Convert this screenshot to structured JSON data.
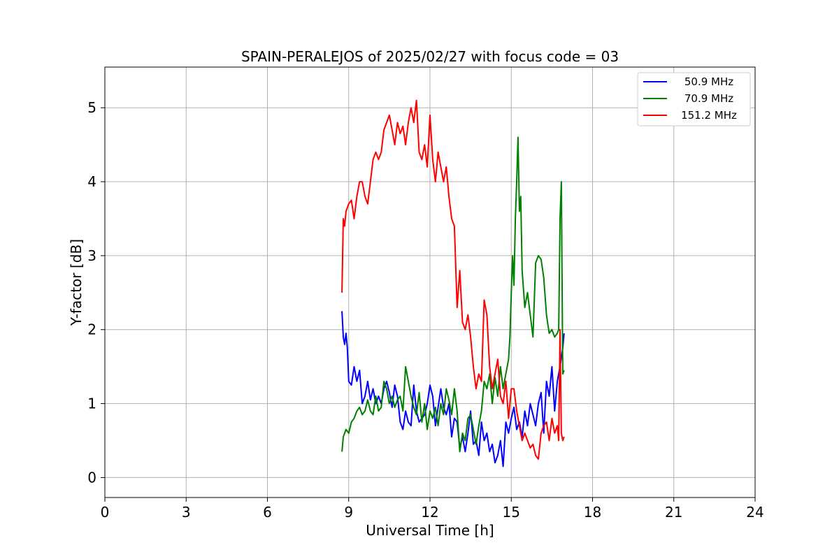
{
  "chart_data": {
    "type": "line",
    "title": "SPAIN-PERALEJOS of 2025/02/27 with focus code = 03",
    "xlabel": "Universal Time [h]",
    "ylabel": "Y-factor [dB]",
    "xlim": [
      0,
      24
    ],
    "ylim": [
      -0.27,
      5.55
    ],
    "xticks": [
      0,
      3,
      6,
      9,
      12,
      15,
      18,
      21,
      24
    ],
    "yticks": [
      0,
      1,
      2,
      3,
      4,
      5
    ],
    "grid": true,
    "legend_position": "top-right",
    "series": [
      {
        "name": "50.9 MHz",
        "color": "#0000ff",
        "x": [
          8.75,
          8.8,
          8.85,
          8.9,
          8.95,
          9.0,
          9.1,
          9.2,
          9.3,
          9.4,
          9.5,
          9.6,
          9.7,
          9.8,
          9.9,
          10.0,
          10.1,
          10.2,
          10.3,
          10.4,
          10.5,
          10.6,
          10.7,
          10.8,
          10.9,
          11.0,
          11.1,
          11.2,
          11.3,
          11.4,
          11.5,
          11.6,
          11.7,
          11.8,
          11.9,
          12.0,
          12.1,
          12.2,
          12.3,
          12.4,
          12.5,
          12.6,
          12.7,
          12.8,
          12.9,
          13.0,
          13.1,
          13.2,
          13.3,
          13.4,
          13.5,
          13.6,
          13.7,
          13.8,
          13.9,
          14.0,
          14.1,
          14.2,
          14.3,
          14.4,
          14.5,
          14.6,
          14.7,
          14.8,
          14.9,
          15.0,
          15.1,
          15.2,
          15.3,
          15.4,
          15.5,
          15.6,
          15.7,
          15.8,
          15.9,
          16.0,
          16.1,
          16.2,
          16.3,
          16.4,
          16.5,
          16.6,
          16.7,
          16.8,
          16.9,
          16.95
        ],
        "values": [
          2.25,
          1.9,
          1.8,
          1.95,
          1.75,
          1.3,
          1.25,
          1.5,
          1.3,
          1.45,
          1.0,
          1.1,
          1.3,
          1.05,
          1.2,
          1.0,
          1.1,
          1.0,
          1.2,
          1.3,
          1.15,
          0.95,
          1.25,
          1.1,
          0.75,
          0.65,
          0.9,
          0.75,
          0.7,
          1.25,
          0.9,
          0.75,
          0.8,
          0.85,
          1.0,
          1.25,
          1.1,
          0.7,
          0.95,
          1.2,
          0.95,
          0.85,
          1.0,
          0.55,
          0.8,
          0.75,
          0.4,
          0.55,
          0.35,
          0.6,
          0.9,
          0.45,
          0.5,
          0.3,
          0.75,
          0.5,
          0.6,
          0.35,
          0.45,
          0.2,
          0.3,
          0.5,
          0.15,
          0.75,
          0.6,
          0.8,
          0.95,
          0.65,
          0.75,
          0.55,
          0.9,
          0.7,
          1.0,
          0.85,
          0.7,
          1.0,
          1.15,
          0.6,
          1.3,
          1.1,
          1.5,
          0.9,
          1.3,
          1.5,
          1.75,
          1.95
        ]
      },
      {
        "name": "70.9 MHz",
        "color": "#008000",
        "x": [
          8.75,
          8.8,
          8.9,
          9.0,
          9.1,
          9.2,
          9.3,
          9.4,
          9.5,
          9.6,
          9.7,
          9.8,
          9.9,
          10.0,
          10.1,
          10.2,
          10.3,
          10.4,
          10.5,
          10.6,
          10.7,
          10.8,
          10.9,
          11.0,
          11.1,
          11.2,
          11.3,
          11.4,
          11.5,
          11.6,
          11.7,
          11.8,
          11.9,
          12.0,
          12.1,
          12.2,
          12.3,
          12.4,
          12.5,
          12.6,
          12.7,
          12.8,
          12.9,
          13.0,
          13.1,
          13.2,
          13.3,
          13.4,
          13.5,
          13.6,
          13.7,
          13.8,
          13.9,
          14.0,
          14.1,
          14.2,
          14.3,
          14.4,
          14.5,
          14.6,
          14.7,
          14.8,
          14.9,
          14.95,
          15.0,
          15.05,
          15.1,
          15.15,
          15.2,
          15.25,
          15.3,
          15.35,
          15.4,
          15.5,
          15.6,
          15.7,
          15.8,
          15.9,
          16.0,
          16.1,
          16.2,
          16.3,
          16.4,
          16.5,
          16.6,
          16.7,
          16.75,
          16.8,
          16.85,
          16.9,
          16.95
        ],
        "values": [
          0.35,
          0.55,
          0.65,
          0.6,
          0.75,
          0.8,
          0.9,
          0.95,
          0.85,
          0.9,
          1.05,
          0.9,
          0.85,
          1.1,
          0.9,
          0.95,
          1.3,
          1.2,
          1.0,
          1.1,
          0.95,
          1.05,
          1.1,
          0.9,
          1.5,
          1.3,
          1.1,
          0.95,
          0.85,
          1.15,
          0.75,
          1.0,
          0.65,
          0.9,
          0.8,
          0.95,
          0.7,
          1.0,
          0.85,
          1.2,
          1.05,
          0.85,
          1.2,
          0.9,
          0.35,
          0.6,
          0.5,
          0.8,
          0.85,
          0.65,
          0.45,
          0.7,
          0.9,
          1.3,
          1.2,
          1.4,
          1.0,
          1.35,
          1.1,
          1.5,
          1.2,
          1.4,
          1.6,
          1.9,
          2.5,
          3.0,
          2.6,
          3.5,
          4.0,
          4.6,
          3.6,
          3.8,
          2.8,
          2.3,
          2.5,
          2.2,
          1.9,
          2.9,
          3.0,
          2.95,
          2.7,
          2.2,
          1.95,
          2.0,
          1.9,
          1.95,
          2.0,
          3.5,
          4.0,
          1.4,
          1.45
        ]
      },
      {
        "name": "151.2 MHz",
        "color": "#ff0000",
        "x": [
          8.75,
          8.8,
          8.85,
          8.9,
          9.0,
          9.1,
          9.2,
          9.3,
          9.4,
          9.5,
          9.6,
          9.7,
          9.8,
          9.9,
          10.0,
          10.1,
          10.2,
          10.3,
          10.4,
          10.5,
          10.6,
          10.7,
          10.8,
          10.9,
          11.0,
          11.1,
          11.2,
          11.3,
          11.4,
          11.5,
          11.6,
          11.7,
          11.8,
          11.9,
          12.0,
          12.1,
          12.2,
          12.3,
          12.4,
          12.5,
          12.6,
          12.7,
          12.8,
          12.9,
          13.0,
          13.1,
          13.2,
          13.3,
          13.4,
          13.5,
          13.6,
          13.7,
          13.8,
          13.9,
          14.0,
          14.1,
          14.2,
          14.3,
          14.4,
          14.5,
          14.6,
          14.7,
          14.8,
          14.9,
          15.0,
          15.1,
          15.2,
          15.3,
          15.4,
          15.5,
          15.6,
          15.7,
          15.8,
          15.9,
          16.0,
          16.1,
          16.2,
          16.3,
          16.4,
          16.5,
          16.6,
          16.7,
          16.75,
          16.8,
          16.85,
          16.9,
          16.95
        ],
        "values": [
          2.5,
          3.5,
          3.4,
          3.6,
          3.7,
          3.75,
          3.5,
          3.8,
          4.0,
          4.0,
          3.8,
          3.7,
          4.0,
          4.3,
          4.4,
          4.3,
          4.4,
          4.7,
          4.8,
          4.9,
          4.7,
          4.5,
          4.8,
          4.65,
          4.75,
          4.5,
          4.8,
          5.0,
          4.8,
          5.1,
          4.4,
          4.3,
          4.5,
          4.2,
          4.9,
          4.3,
          4.0,
          4.4,
          4.2,
          4.0,
          4.2,
          3.8,
          3.5,
          3.4,
          2.3,
          2.8,
          2.1,
          2.0,
          2.2,
          1.9,
          1.5,
          1.2,
          1.4,
          1.3,
          2.4,
          2.2,
          1.5,
          1.2,
          1.4,
          1.6,
          1.1,
          1.0,
          1.3,
          0.8,
          1.2,
          1.2,
          0.9,
          0.7,
          0.5,
          0.6,
          0.5,
          0.4,
          0.45,
          0.3,
          0.25,
          0.6,
          0.7,
          0.75,
          0.5,
          0.8,
          0.6,
          0.7,
          0.5,
          2.0,
          0.6,
          0.5,
          0.55
        ]
      }
    ]
  }
}
